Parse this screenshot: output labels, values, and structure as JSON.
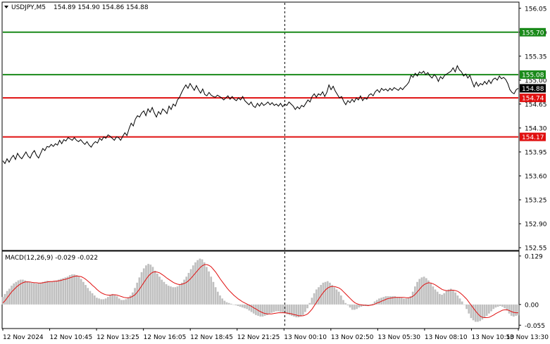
{
  "header": {
    "symbol": "USDJPY,M5",
    "ohlc": "154.89 154.90 154.86 154.88"
  },
  "macd_header": "MACD(12,26,9) -0.029 -0.022",
  "colors": {
    "price_line": "#000000",
    "resistance": "#1a8a1a",
    "support": "#e01010",
    "signal": "#e01010",
    "histogram": "#c0c0c0",
    "current_price_bg": "#000000"
  },
  "chart_data": [
    {
      "type": "line",
      "title": "USDJPY,M5",
      "x_labels": [
        "12 Nov 2024",
        "12 Nov 10:45",
        "12 Nov 13:25",
        "12 Nov 16:05",
        "12 Nov 18:45",
        "12 Nov 21:25",
        "13 Nov 00:10",
        "13 Nov 02:50",
        "13 Nov 05:30",
        "13 Nov 08:10",
        "13 Nov 10:50",
        "13 Nov 13:30"
      ],
      "y_ticks": [
        "156.05",
        "155.70",
        "155.35",
        "155.00",
        "154.65",
        "154.30",
        "153.95",
        "153.60",
        "153.25",
        "152.90",
        "152.55"
      ],
      "ylim": [
        152.52,
        156.13
      ],
      "horizontal_levels": [
        {
          "value": 155.7,
          "label": "155.70",
          "color": "green"
        },
        {
          "value": 155.08,
          "label": "155.08",
          "color": "green"
        },
        {
          "value": 154.74,
          "label": "154.74",
          "color": "red"
        },
        {
          "value": 154.17,
          "label": "154.17",
          "color": "red"
        }
      ],
      "current_price": "154.88",
      "vertical_separator_index": 134,
      "series": [
        {
          "values": [
            153.82,
            153.78,
            153.85,
            153.8,
            153.86,
            153.9,
            153.84,
            153.93,
            153.88,
            153.85,
            153.9,
            153.95,
            153.89,
            153.86,
            153.93,
            153.97,
            153.9,
            153.86,
            153.93,
            154.0,
            153.97,
            154.03,
            154.02,
            154.06,
            154.03,
            154.07,
            154.05,
            154.12,
            154.07,
            154.13,
            154.11,
            154.16,
            154.14,
            154.12,
            154.16,
            154.12,
            154.1,
            154.13,
            154.09,
            154.06,
            154.1,
            154.05,
            154.02,
            154.07,
            154.1,
            154.08,
            154.15,
            154.12,
            154.17,
            154.15,
            154.2,
            154.18,
            154.15,
            154.12,
            154.17,
            154.16,
            154.12,
            154.18,
            154.23,
            154.19,
            154.29,
            154.37,
            154.33,
            154.43,
            154.48,
            154.46,
            154.52,
            154.55,
            154.48,
            154.58,
            154.53,
            154.6,
            154.52,
            154.46,
            154.54,
            154.5,
            154.58,
            154.55,
            154.51,
            154.62,
            154.57,
            154.65,
            154.62,
            154.71,
            154.75,
            154.82,
            154.88,
            154.93,
            154.88,
            154.95,
            154.9,
            154.85,
            154.92,
            154.86,
            154.81,
            154.87,
            154.79,
            154.77,
            154.82,
            154.78,
            154.76,
            154.75,
            154.78,
            154.76,
            154.74,
            154.71,
            154.74,
            154.77,
            154.72,
            154.76,
            154.72,
            154.7,
            154.74,
            154.71,
            154.76,
            154.7,
            154.67,
            154.64,
            154.68,
            154.62,
            154.6,
            154.66,
            154.62,
            154.67,
            154.63,
            154.65,
            154.68,
            154.64,
            154.67,
            154.63,
            154.65,
            154.62,
            154.66,
            154.61,
            154.65,
            154.63,
            154.68,
            154.65,
            154.62,
            154.57,
            154.61,
            154.58,
            154.63,
            154.61,
            154.66,
            154.71,
            154.68,
            154.76,
            154.8,
            154.75,
            154.8,
            154.78,
            154.83,
            154.76,
            154.82,
            154.93,
            154.86,
            154.91,
            154.84,
            154.79,
            154.74,
            154.76,
            154.69,
            154.64,
            154.7,
            154.67,
            154.72,
            154.68,
            154.74,
            154.71,
            154.77,
            154.7,
            154.74,
            154.72,
            154.78,
            154.8,
            154.77,
            154.83,
            154.86,
            154.82,
            154.88,
            154.85,
            154.87,
            154.84,
            154.88,
            154.85,
            154.89,
            154.87,
            154.85,
            154.89,
            154.86,
            154.9,
            154.93,
            154.97,
            155.07,
            155.04,
            155.1,
            155.06,
            155.12,
            155.1,
            155.13,
            155.08,
            155.11,
            155.06,
            155.03,
            155.08,
            155.05,
            154.98,
            155.05,
            155.02,
            155.07,
            155.09,
            155.11,
            155.13,
            155.18,
            155.12,
            155.21,
            155.15,
            155.12,
            155.06,
            155.09,
            155.03,
            155.07,
            154.98,
            154.9,
            154.97,
            154.91,
            154.95,
            154.93,
            154.98,
            154.94,
            155.0,
            154.95,
            155.01,
            155.03,
            155.0,
            155.06,
            155.02,
            155.04,
            155.01,
            154.95,
            154.86,
            154.82,
            154.8,
            154.86,
            154.88
          ]
        }
      ]
    },
    {
      "type": "bar",
      "title": "MACD(12,26,9)",
      "y_ticks": [
        "0.129",
        "0.00",
        "-0.055"
      ],
      "ylim": [
        -0.062,
        0.14
      ],
      "series": [
        {
          "name": "MACD",
          "values": [
            0.02,
            0.028,
            0.036,
            0.042,
            0.05,
            0.056,
            0.06,
            0.064,
            0.066,
            0.066,
            0.064,
            0.062,
            0.06,
            0.058,
            0.057,
            0.056,
            0.056,
            0.058,
            0.06,
            0.062,
            0.063,
            0.062,
            0.062,
            0.063,
            0.064,
            0.066,
            0.068,
            0.07,
            0.072,
            0.074,
            0.078,
            0.08,
            0.08,
            0.078,
            0.074,
            0.068,
            0.06,
            0.052,
            0.044,
            0.036,
            0.03,
            0.024,
            0.018,
            0.016,
            0.014,
            0.014,
            0.016,
            0.02,
            0.024,
            0.028,
            0.026,
            0.022,
            0.016,
            0.012,
            0.012,
            0.014,
            0.018,
            0.024,
            0.032,
            0.044,
            0.058,
            0.072,
            0.086,
            0.096,
            0.104,
            0.108,
            0.106,
            0.1,
            0.09,
            0.082,
            0.074,
            0.066,
            0.06,
            0.054,
            0.05,
            0.048,
            0.046,
            0.046,
            0.048,
            0.052,
            0.058,
            0.066,
            0.074,
            0.084,
            0.094,
            0.104,
            0.112,
            0.118,
            0.122,
            0.12,
            0.112,
            0.1,
            0.088,
            0.074,
            0.06,
            0.046,
            0.034,
            0.024,
            0.016,
            0.01,
            0.006,
            0.004,
            0.002,
            0.0,
            -0.002,
            -0.004,
            -0.006,
            -0.008,
            -0.01,
            -0.012,
            -0.016,
            -0.02,
            -0.024,
            -0.028,
            -0.03,
            -0.032,
            -0.032,
            -0.03,
            -0.028,
            -0.024,
            -0.022,
            -0.02,
            -0.018,
            -0.018,
            -0.02,
            -0.022,
            -0.024,
            -0.026,
            -0.028,
            -0.03,
            -0.032,
            -0.034,
            -0.034,
            -0.032,
            -0.028,
            -0.02,
            -0.01,
            0.004,
            0.018,
            0.03,
            0.04,
            0.046,
            0.052,
            0.058,
            0.06,
            0.062,
            0.058,
            0.052,
            0.046,
            0.04,
            0.034,
            0.024,
            0.012,
            0.004,
            -0.002,
            -0.008,
            -0.014,
            -0.014,
            -0.012,
            -0.008,
            -0.006,
            -0.004,
            -0.004,
            -0.004,
            -0.002,
            0.002,
            0.008,
            0.012,
            0.016,
            0.018,
            0.02,
            0.022,
            0.022,
            0.022,
            0.022,
            0.022,
            0.02,
            0.02,
            0.018,
            0.016,
            0.016,
            0.018,
            0.022,
            0.034,
            0.048,
            0.06,
            0.068,
            0.072,
            0.074,
            0.07,
            0.064,
            0.056,
            0.048,
            0.04,
            0.034,
            0.028,
            0.026,
            0.03,
            0.036,
            0.04,
            0.042,
            0.038,
            0.032,
            0.024,
            0.016,
            0.008,
            0.0,
            -0.012,
            -0.024,
            -0.036,
            -0.042,
            -0.046,
            -0.046,
            -0.044,
            -0.04,
            -0.036,
            -0.03,
            -0.024,
            -0.018,
            -0.012,
            -0.008,
            -0.006,
            -0.004,
            -0.006,
            -0.01,
            -0.016,
            -0.024,
            -0.03,
            -0.032,
            -0.03,
            -0.029
          ]
        },
        {
          "name": "Signal",
          "values": [
            0.004,
            0.01,
            0.018,
            0.026,
            0.034,
            0.04,
            0.046,
            0.051,
            0.055,
            0.058,
            0.06,
            0.06,
            0.06,
            0.059,
            0.058,
            0.058,
            0.057,
            0.057,
            0.058,
            0.059,
            0.06,
            0.061,
            0.061,
            0.062,
            0.062,
            0.063,
            0.064,
            0.066,
            0.067,
            0.069,
            0.071,
            0.073,
            0.075,
            0.076,
            0.075,
            0.074,
            0.071,
            0.067,
            0.062,
            0.057,
            0.051,
            0.046,
            0.04,
            0.035,
            0.031,
            0.028,
            0.026,
            0.025,
            0.025,
            0.026,
            0.026,
            0.025,
            0.023,
            0.021,
            0.019,
            0.018,
            0.018,
            0.019,
            0.022,
            0.026,
            0.033,
            0.041,
            0.05,
            0.059,
            0.068,
            0.076,
            0.082,
            0.086,
            0.087,
            0.086,
            0.084,
            0.08,
            0.076,
            0.071,
            0.067,
            0.063,
            0.059,
            0.056,
            0.054,
            0.053,
            0.054,
            0.056,
            0.059,
            0.064,
            0.07,
            0.077,
            0.084,
            0.091,
            0.098,
            0.103,
            0.106,
            0.106,
            0.104,
            0.1,
            0.093,
            0.086,
            0.077,
            0.068,
            0.06,
            0.052,
            0.044,
            0.037,
            0.031,
            0.025,
            0.02,
            0.015,
            0.011,
            0.007,
            0.004,
            0.001,
            -0.002,
            -0.005,
            -0.009,
            -0.012,
            -0.016,
            -0.019,
            -0.022,
            -0.024,
            -0.025,
            -0.025,
            -0.025,
            -0.024,
            -0.023,
            -0.022,
            -0.022,
            -0.022,
            -0.022,
            -0.023,
            -0.024,
            -0.025,
            -0.027,
            -0.028,
            -0.03,
            -0.03,
            -0.03,
            -0.028,
            -0.025,
            -0.019,
            -0.012,
            -0.003,
            0.006,
            0.015,
            0.024,
            0.032,
            0.039,
            0.044,
            0.047,
            0.048,
            0.048,
            0.046,
            0.044,
            0.04,
            0.034,
            0.028,
            0.022,
            0.016,
            0.01,
            0.005,
            0.002,
            0.0,
            -0.001,
            -0.002,
            -0.002,
            -0.003,
            -0.002,
            -0.001,
            0.001,
            0.004,
            0.006,
            0.009,
            0.011,
            0.014,
            0.016,
            0.017,
            0.018,
            0.019,
            0.019,
            0.019,
            0.019,
            0.019,
            0.018,
            0.018,
            0.019,
            0.022,
            0.027,
            0.034,
            0.041,
            0.048,
            0.053,
            0.056,
            0.058,
            0.057,
            0.055,
            0.052,
            0.048,
            0.044,
            0.04,
            0.038,
            0.037,
            0.037,
            0.038,
            0.038,
            0.037,
            0.035,
            0.031,
            0.026,
            0.02,
            0.014,
            0.006,
            -0.002,
            -0.01,
            -0.018,
            -0.025,
            -0.031,
            -0.034,
            -0.035,
            -0.035,
            -0.034,
            -0.031,
            -0.028,
            -0.024,
            -0.021,
            -0.018,
            -0.015,
            -0.014,
            -0.014,
            -0.016,
            -0.019,
            -0.021,
            -0.022,
            -0.022
          ]
        }
      ]
    }
  ]
}
